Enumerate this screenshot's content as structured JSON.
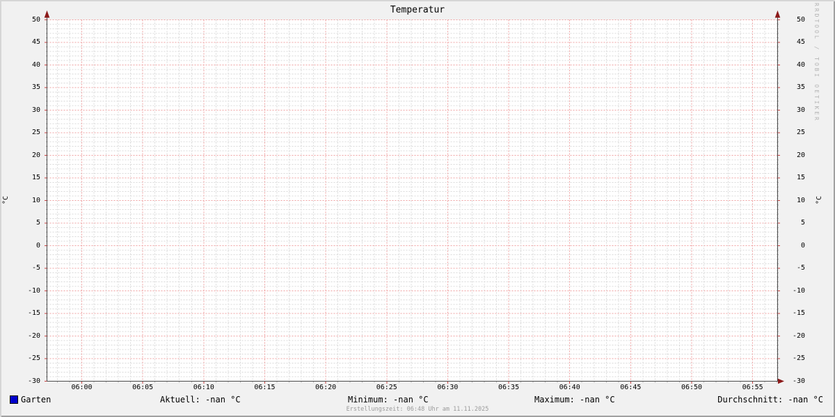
{
  "watermark": "RRDTOOL / TOBI OETIKER",
  "legend": {
    "stats": {
      "aktuell": "Aktuell: -nan °C",
      "minimum": "Minimum: -nan °C",
      "maximum": "Maximum: -nan °C",
      "durchschnitt": "Durchschnitt: -nan °C"
    }
  },
  "footer": {
    "creation_time": "Erstellungszeit: 06:48 Uhr am 11.11.2025"
  },
  "chart_data": {
    "type": "line",
    "title": "Temperatur",
    "ylabel": "°C",
    "ylabel_right": "°C",
    "ylim": [
      -30,
      50
    ],
    "ytick_step": 5,
    "y_minor_step": 1,
    "x_tick_labels": [
      "06:00",
      "06:05",
      "06:10",
      "06:15",
      "06:20",
      "06:25",
      "06:30",
      "06:35",
      "06:40",
      "06:45",
      "06:50",
      "06:55"
    ],
    "x_minor_per_major": 5,
    "grid": {
      "on": true,
      "major_color": "#efa0a0",
      "minor_color": "#d9d9d9",
      "major_tick_color": "#c84040",
      "minor_tick_color": "#b0b0b0",
      "style": "dotted"
    },
    "canvas_color": "#ffffff",
    "background_color": "#f1f1f1",
    "axis_color": "#4a4a4a",
    "arrow_color": "#8c1a1a",
    "legend_position": "bottom",
    "series": [
      {
        "name": "Garten",
        "color": "#0000cd",
        "values": []
      }
    ]
  }
}
